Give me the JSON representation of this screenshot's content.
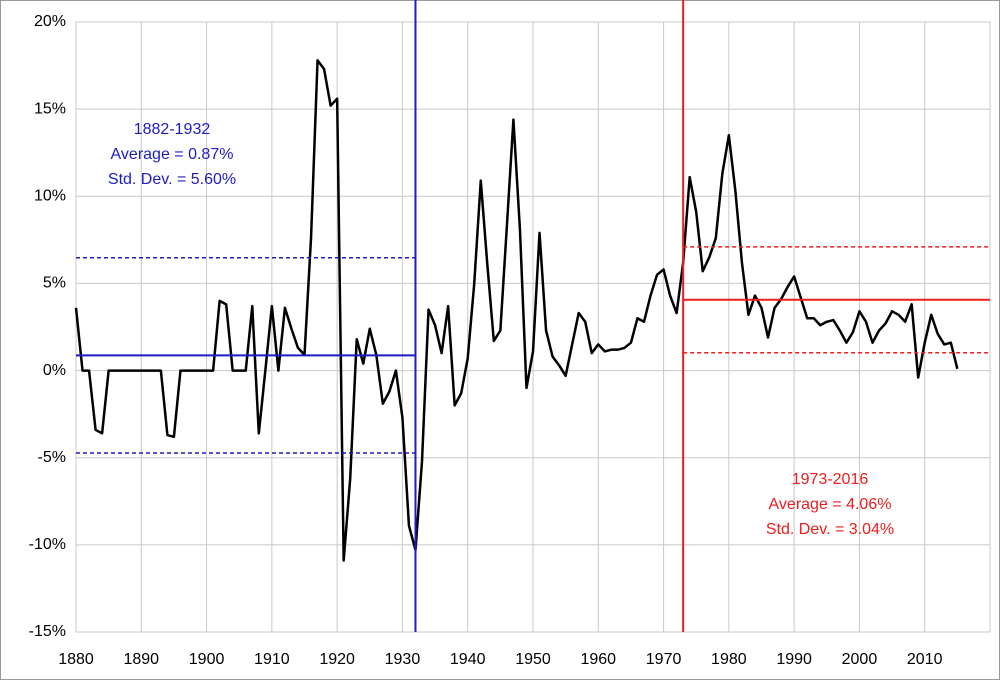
{
  "chart_data": {
    "type": "line",
    "x": [
      1880,
      1881,
      1882,
      1883,
      1884,
      1885,
      1886,
      1887,
      1888,
      1889,
      1890,
      1891,
      1892,
      1893,
      1894,
      1895,
      1896,
      1897,
      1898,
      1899,
      1900,
      1901,
      1902,
      1903,
      1904,
      1905,
      1906,
      1907,
      1908,
      1909,
      1910,
      1911,
      1912,
      1913,
      1914,
      1915,
      1916,
      1917,
      1918,
      1919,
      1920,
      1921,
      1922,
      1923,
      1924,
      1925,
      1926,
      1927,
      1928,
      1929,
      1930,
      1931,
      1932,
      1933,
      1934,
      1935,
      1936,
      1937,
      1938,
      1939,
      1940,
      1941,
      1942,
      1943,
      1944,
      1945,
      1946,
      1947,
      1948,
      1949,
      1950,
      1951,
      1952,
      1953,
      1954,
      1955,
      1956,
      1957,
      1958,
      1959,
      1960,
      1961,
      1962,
      1963,
      1964,
      1965,
      1966,
      1967,
      1968,
      1969,
      1970,
      1971,
      1972,
      1973,
      1974,
      1975,
      1976,
      1977,
      1978,
      1979,
      1980,
      1981,
      1982,
      1983,
      1984,
      1985,
      1986,
      1987,
      1988,
      1989,
      1990,
      1991,
      1992,
      1993,
      1994,
      1995,
      1996,
      1997,
      1998,
      1999,
      2000,
      2001,
      2002,
      2003,
      2004,
      2005,
      2006,
      2007,
      2008,
      2009,
      2010,
      2011,
      2012,
      2013,
      2014,
      2015
    ],
    "series": [
      {
        "color": "#000000",
        "values": [
          3.6,
          0,
          0,
          -3.4,
          -3.6,
          0,
          0,
          0,
          0,
          0,
          0,
          0,
          0,
          0,
          -3.7,
          -3.8,
          0,
          0,
          0,
          0,
          0,
          0,
          4.0,
          3.8,
          0,
          0,
          0,
          3.7,
          -3.6,
          0,
          3.7,
          0,
          3.6,
          2.4,
          1.3,
          0.9,
          7.6,
          17.8,
          17.3,
          15.2,
          15.6,
          -10.9,
          -6.2,
          1.8,
          0.4,
          2.4,
          0.9,
          -1.9,
          -1.2,
          0,
          -2.7,
          -8.9,
          -10.3,
          -5.2,
          3.5,
          2.6,
          1.0,
          3.7,
          -2.0,
          -1.3,
          0.7,
          5.0,
          10.9,
          6.1,
          1.7,
          2.3,
          8.3,
          14.4,
          8.1,
          -1.0,
          1.1,
          7.9,
          2.3,
          0.8,
          0.3,
          -0.3,
          1.5,
          3.3,
          2.8,
          1.0,
          1.5,
          1.1,
          1.2,
          1.2,
          1.3,
          1.6,
          3.0,
          2.8,
          4.3,
          5.5,
          5.8,
          4.3,
          3.3,
          6.2,
          11.1,
          9.1,
          5.7,
          6.5,
          7.6,
          11.3,
          13.5,
          10.3,
          6.2,
          3.2,
          4.3,
          3.6,
          1.9,
          3.6,
          4.1,
          4.8,
          5.4,
          4.2,
          3.0,
          3.0,
          2.6,
          2.8,
          2.9,
          2.3,
          1.6,
          2.2,
          3.4,
          2.8,
          1.6,
          2.3,
          2.7,
          3.4,
          3.2,
          2.8,
          3.8,
          -0.4,
          1.6,
          3.2,
          2.1,
          1.5,
          1.6,
          0.1
        ]
      }
    ],
    "xlim": [
      1880,
      2020
    ],
    "xticks": [
      1880,
      1890,
      1900,
      1910,
      1920,
      1930,
      1940,
      1950,
      1960,
      1970,
      1980,
      1990,
      2000,
      2010
    ],
    "ylim": [
      -15,
      20
    ],
    "yticks": [
      {
        "value": -15,
        "label": "-15%"
      },
      {
        "value": -10,
        "label": "-10%"
      },
      {
        "value": -5,
        "label": "-5%"
      },
      {
        "value": 0,
        "label": "0%"
      },
      {
        "value": 5,
        "label": "5%"
      },
      {
        "value": 10,
        "label": "10%"
      },
      {
        "value": 15,
        "label": "15%"
      },
      {
        "value": 20,
        "label": "20%"
      }
    ],
    "grid": true,
    "periods": [
      {
        "label": "1882-1932",
        "average_label": "Average = 0.87%",
        "sd_label": "Std. Dev. = 5.60%",
        "color": "#1c1cc4",
        "divider": 1932,
        "x_range": [
          1880,
          1932
        ],
        "mean": 0.87,
        "upper": 6.47,
        "lower": -4.73
      },
      {
        "label": "1973-2016",
        "average_label": "Average = 4.06%",
        "sd_label": "Std. Dev. = 3.04%",
        "color": "#ee1c1c",
        "divider": 1973,
        "x_range": [
          1973,
          2020
        ],
        "mean": 4.06,
        "upper": 7.1,
        "lower": 1.02
      }
    ]
  }
}
